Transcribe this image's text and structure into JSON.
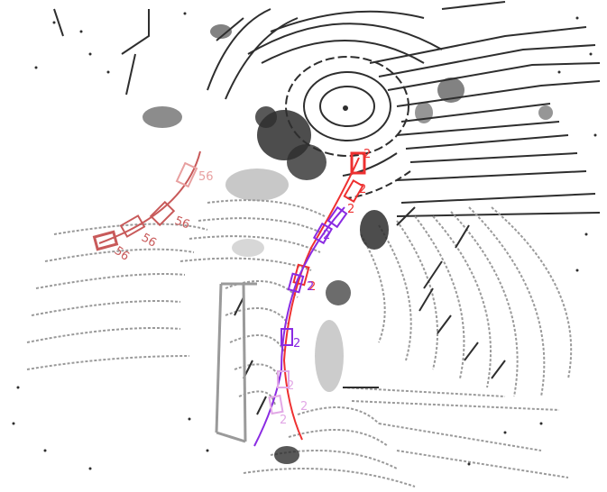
{
  "colors": {
    "background": "#ffffff",
    "points_dark": "#2e2e2e",
    "points_light": "#9a9a9a",
    "track_56": "#c85a5a",
    "track_56_light": "#e8a0a0",
    "track_2": "#ee3030",
    "track_purple": "#8a2be2",
    "track_pink": "#e2a8e6"
  },
  "labels": {
    "track_a": "56",
    "track_b": "2"
  }
}
